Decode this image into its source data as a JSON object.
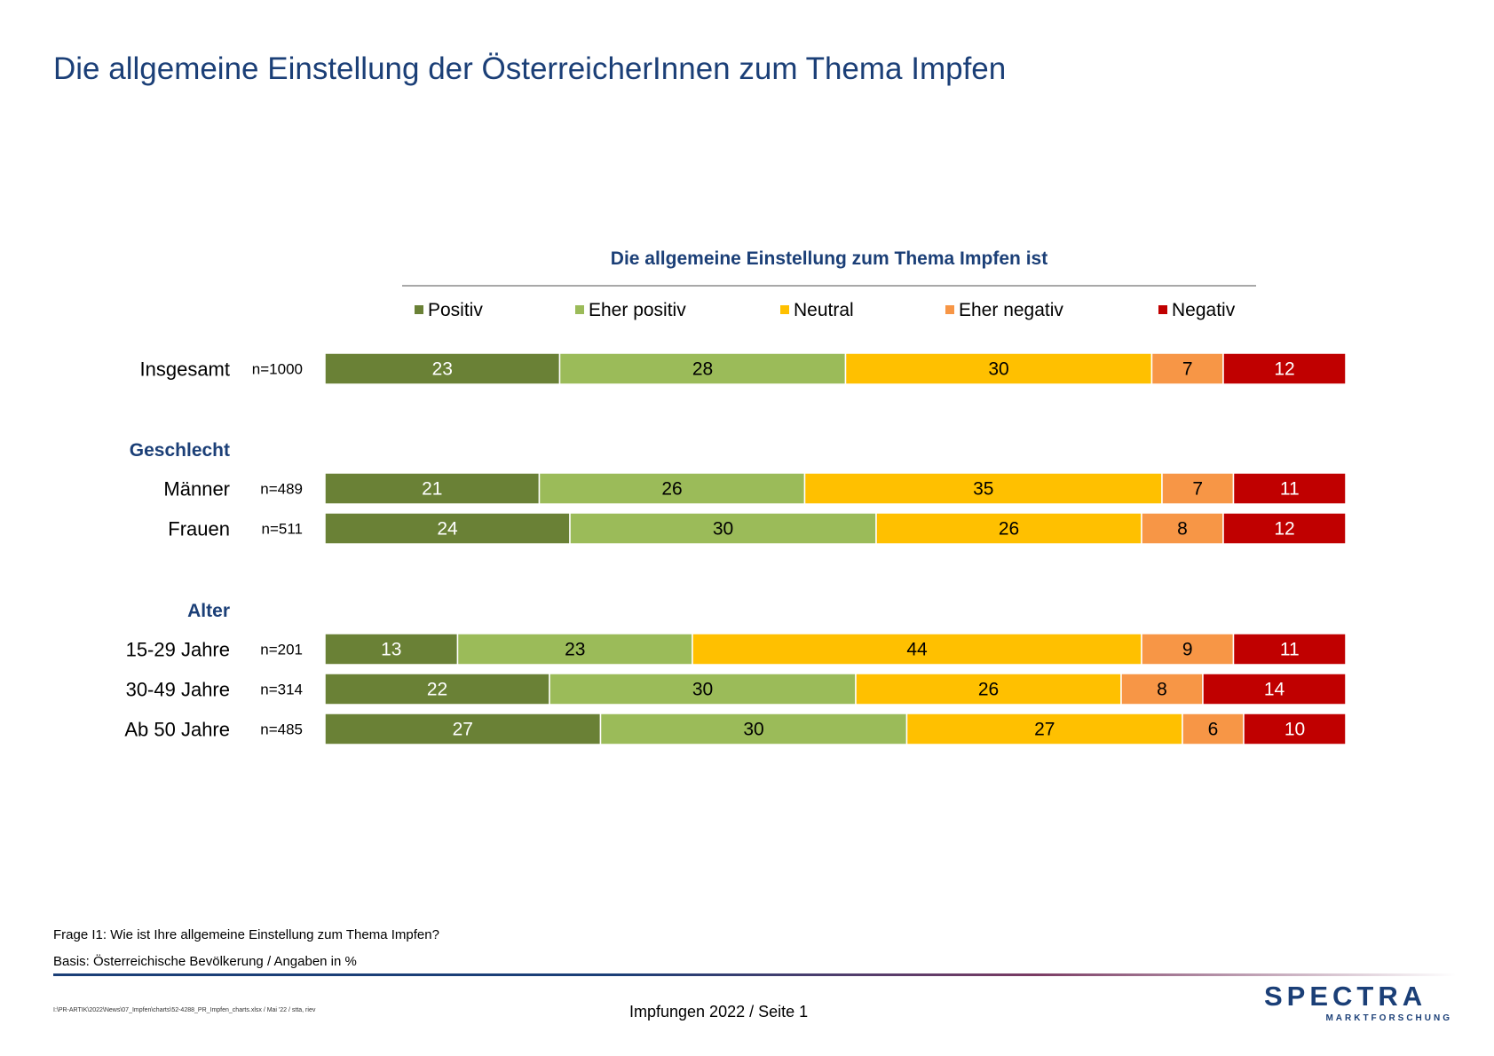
{
  "page": {
    "title": "Die allgemeine Einstellung der ÖsterreicherInnen zum Thema Impfen",
    "question": "Frage I1: Wie ist Ihre allgemeine Einstellung zum Thema Impfen?",
    "base": "Basis: Österreichische Bevölkerung / Angaben in %",
    "file_path": "I:\\PR-ARTIK\\2022\\News\\07_Impfen\\charts\\52-4288_PR_Impfen_charts.xlsx / Mai '22 / stta, riev",
    "page_label": "Impfungen 2022  /  Seite  1"
  },
  "logo": {
    "main": "SPECTRA",
    "sub": "MARKTFORSCHUNG"
  },
  "chart_data": {
    "type": "bar",
    "orientation": "horizontal",
    "stacked": true,
    "title": "Die allgemeine Einstellung zum Thema Impfen ist",
    "legend_position": "top",
    "series": [
      {
        "name": "Positiv",
        "color": "#6a8136",
        "text_color": "#ffffff"
      },
      {
        "name": "Eher positiv",
        "color": "#9bbb59",
        "text_color": "#000000"
      },
      {
        "name": "Neutral",
        "color": "#ffc000",
        "text_color": "#000000"
      },
      {
        "name": "Eher negativ",
        "color": "#f79646",
        "text_color": "#000000"
      },
      {
        "name": "Negativ",
        "color": "#c00000",
        "text_color": "#ffffff"
      }
    ],
    "groups": [
      {
        "label": "",
        "rows": [
          {
            "label": "Insgesamt",
            "n": "n=1000",
            "values": [
              23,
              28,
              30,
              7,
              12
            ]
          }
        ]
      },
      {
        "label": "Geschlecht",
        "rows": [
          {
            "label": "Männer",
            "n": "n=489",
            "values": [
              21,
              26,
              35,
              7,
              11
            ]
          },
          {
            "label": "Frauen",
            "n": "n=511",
            "values": [
              24,
              30,
              26,
              8,
              12
            ]
          }
        ]
      },
      {
        "label": "Alter",
        "rows": [
          {
            "label": "15-29 Jahre",
            "n": "n=201",
            "values": [
              13,
              23,
              44,
              9,
              11
            ]
          },
          {
            "label": "30-49 Jahre",
            "n": "n=314",
            "values": [
              22,
              30,
              26,
              8,
              14
            ]
          },
          {
            "label": "Ab 50 Jahre",
            "n": "n=485",
            "values": [
              27,
              30,
              27,
              6,
              10
            ]
          }
        ]
      }
    ]
  }
}
